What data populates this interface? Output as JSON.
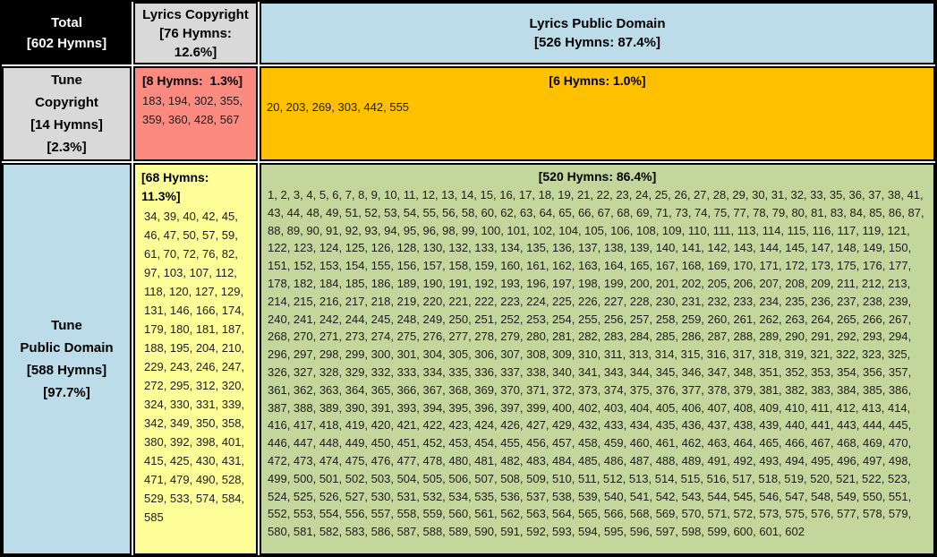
{
  "colors": {
    "corner_bg": "#000000",
    "gray": "#D9D9D9",
    "blue": "#BBDCE8",
    "pink": "#FB8A80",
    "orange": "#FFC000",
    "yellow": "#FEFE99",
    "green": "#C3D69B",
    "border": "#000000"
  },
  "chart_data": {
    "type": "table",
    "corner": {
      "line1": "Total",
      "line2": "[602 Hymns]"
    },
    "columns": [
      {
        "name": "Lyrics Copyright",
        "count": 76,
        "percent": "12.6%",
        "header_lines": [
          "Lyrics Copyright",
          "[76 Hymns:",
          "12.6%]"
        ]
      },
      {
        "name": "Lyrics Public Domain",
        "count": 526,
        "percent": "87.4%",
        "header_lines": [
          "Lyrics Public Domain",
          "[526 Hymns: 87.4%]"
        ]
      }
    ],
    "rows": [
      {
        "name": "Tune Copyright",
        "count": 14,
        "percent": "2.3%",
        "header_lines": [
          "Tune",
          "Copyright",
          "[14 Hymns]",
          "[2.3%]"
        ]
      },
      {
        "name": "Tune Public Domain",
        "count": 588,
        "percent": "97.7%",
        "header_lines": [
          "Tune",
          "Public Domain",
          "[588 Hymns]",
          "[97.7%]"
        ]
      }
    ],
    "cells": {
      "tune_copyright__lyrics_copyright": {
        "label": "[8 Hymns:  1.3%]",
        "count": 8,
        "percent": "1.3%",
        "hymn_numbers": "183, 194, 302, 355, 359, 360, 428, 567"
      },
      "tune_copyright__lyrics_public_domain": {
        "label": "[6 Hymns: 1.0%]",
        "count": 6,
        "percent": "1.0%",
        "hymn_numbers": "20, 203, 269, 303, 442, 555"
      },
      "tune_public_domain__lyrics_copyright": {
        "label": "[68 Hymns: 11.3%]",
        "count": 68,
        "percent": "11.3%",
        "hymn_numbers": "34, 39, 40, 42, 45, 46, 47, 50, 57, 59, 61, 70, 72, 76, 82, 97, 103, 107, 112, 118, 120, 127, 129, 131, 146, 166, 174, 179, 180, 181, 187, 188, 195, 204, 210, 229, 243, 246, 247, 272, 295, 312, 320, 324, 330, 331, 339, 342, 349, 350, 358, 380, 392, 398, 401, 415, 425, 430, 431, 471, 479, 490, 528, 529, 533, 574, 584, 585"
      },
      "tune_public_domain__lyrics_public_domain": {
        "label": "[520 Hymns: 86.4%]",
        "count": 520,
        "percent": "86.4%",
        "hymn_numbers": "1, 2, 3, 4, 5, 6, 7, 8, 9, 10, 11, 12, 13, 14, 15, 16, 17, 18, 19, 21, 22, 23, 24, 25, 26, 27, 28, 29, 30, 31, 32, 33, 35, 36, 37, 38, 41, 43, 44, 48, 49, 51, 52, 53, 54, 55, 56, 58, 60, 62, 63, 64, 65, 66, 67, 68, 69, 71, 73, 74, 75, 77, 78, 79, 80, 81, 83, 84, 85, 86, 87, 88, 89, 90, 91, 92, 93, 94, 95, 96, 98, 99, 100, 101, 102, 104, 105, 106, 108, 109, 110, 111, 113, 114, 115, 116, 117, 119, 121, 122, 123, 124, 125, 126, 128, 130, 132, 133, 134, 135, 136, 137, 138, 139, 140, 141, 142, 143, 144, 145, 147, 148, 149, 150, 151, 152, 153, 154, 155, 156, 157, 158, 159, 160, 161, 162, 163, 164, 165, 167, 168, 169, 170, 171, 172, 173, 175, 176, 177, 178, 182, 184, 185, 186, 189, 190, 191, 192, 193, 196, 197, 198, 199, 200, 201, 202, 205, 206, 207, 208, 209, 211, 212, 213, 214, 215, 216, 217, 218, 219, 220, 221, 222, 223, 224, 225, 226, 227, 228, 230, 231, 232, 233, 234, 235, 236, 237, 238, 239, 240, 241, 242, 244, 245, 248, 249, 250, 251, 252, 253, 254, 255, 256, 257, 258, 259, 260, 261, 262, 263, 264, 265, 266, 267, 268, 270, 271, 273, 274, 275, 276, 277, 278, 279, 280, 281, 282, 283, 284, 285, 286, 287, 288, 289, 290, 291, 292, 293, 294, 296, 297, 298, 299, 300, 301, 304, 305, 306, 307, 308, 309, 310, 311, 313, 314, 315, 316, 317, 318, 319, 321, 322, 323, 325, 326, 327, 328, 329, 332, 333, 334, 335, 336, 337, 338, 340, 341, 343, 344, 345, 346, 347, 348, 351, 352, 353, 354, 356, 357, 361, 362, 363, 364, 365, 366, 367, 368, 369, 370, 371, 372, 373, 374, 375, 376, 377, 378, 379, 381, 382, 383, 384, 385, 386, 387, 388, 389, 390, 391, 393, 394, 395, 396, 397, 399, 400, 402, 403, 404, 405, 406, 407, 408, 409, 410, 411, 412, 413, 414, 416, 417, 418, 419, 420, 421, 422, 423, 424, 426, 427, 429, 432, 433, 434, 435, 436, 437, 438, 439, 440, 441, 443, 444, 445, 446, 447, 448, 449, 450, 451, 452, 453, 454, 455, 456, 457, 458, 459, 460, 461, 462, 463, 464, 465, 466, 467, 468, 469, 470, 472, 473, 474, 475, 476, 477, 478, 480, 481, 482, 483, 484, 485, 486, 487, 488, 489, 491, 492, 493, 494, 495, 496, 497, 498, 499, 500, 501, 502, 503, 504, 505, 506, 507, 508, 509, 510, 511, 512, 513, 514, 515, 516, 517, 518, 519, 520, 521, 522, 523, 524, 525, 526, 527, 530, 531, 532, 534, 535, 536, 537, 538, 539, 540, 541, 542, 543, 544, 545, 546, 547, 548, 549, 550, 551, 552, 553, 554, 556, 557, 558, 559, 560, 561, 562, 563, 564, 565, 566, 568, 569, 570, 571, 572, 573, 575, 576, 577, 578, 579, 580, 581, 582, 583, 586, 587, 588, 589, 590, 591, 592, 593, 594, 595, 596, 597, 598, 599, 600, 601, 602"
      }
    }
  }
}
